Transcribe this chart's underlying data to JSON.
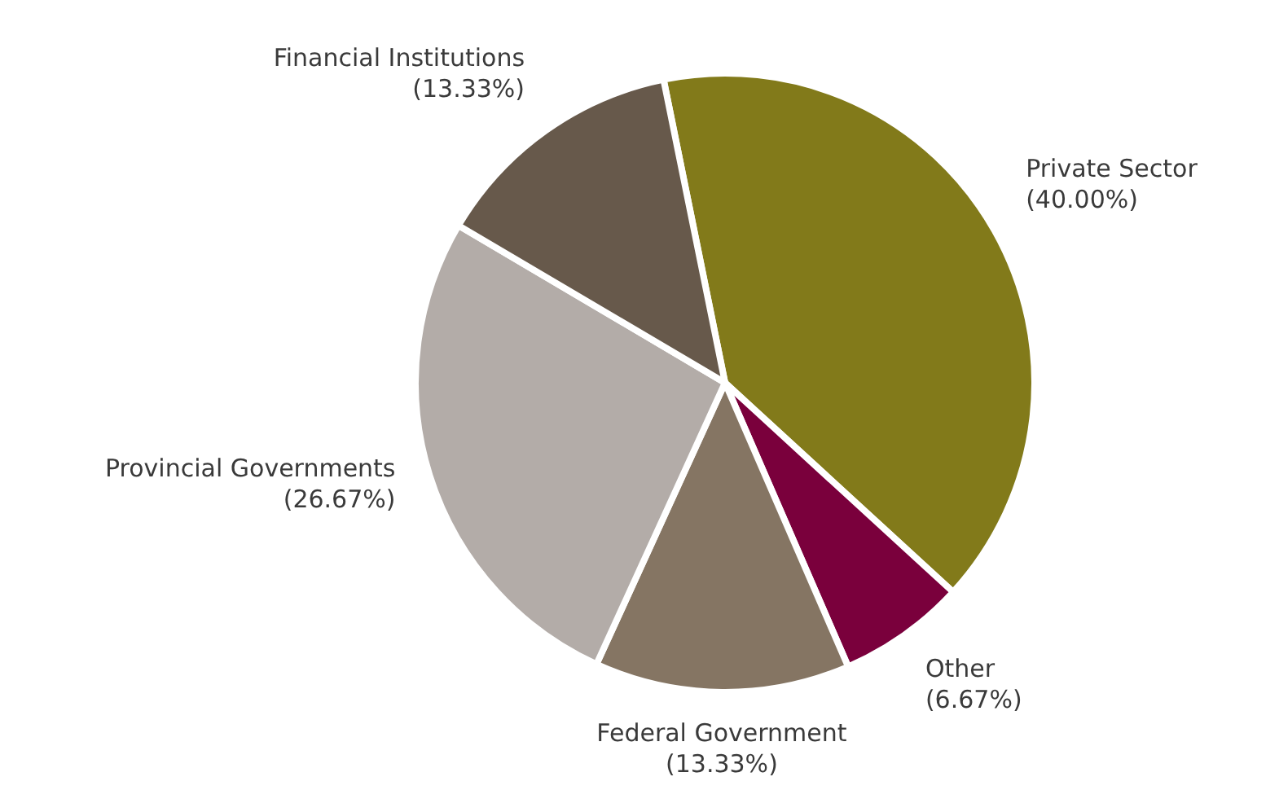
{
  "chart_data": {
    "type": "pie",
    "categories": [
      "Private Sector",
      "Other",
      "Federal Government",
      "Provincial Governments",
      "Financial Institutions"
    ],
    "values": [
      40.0,
      6.67,
      13.33,
      26.67,
      13.33
    ],
    "value_labels": [
      "(40.00%)",
      "(6.67%)",
      "(13.33%)",
      "(26.67%)",
      "(13.33%)"
    ],
    "colors": [
      "#827a1a",
      "#7a003c",
      "#857563",
      "#b3aca8",
      "#67594b"
    ],
    "legend": false
  }
}
